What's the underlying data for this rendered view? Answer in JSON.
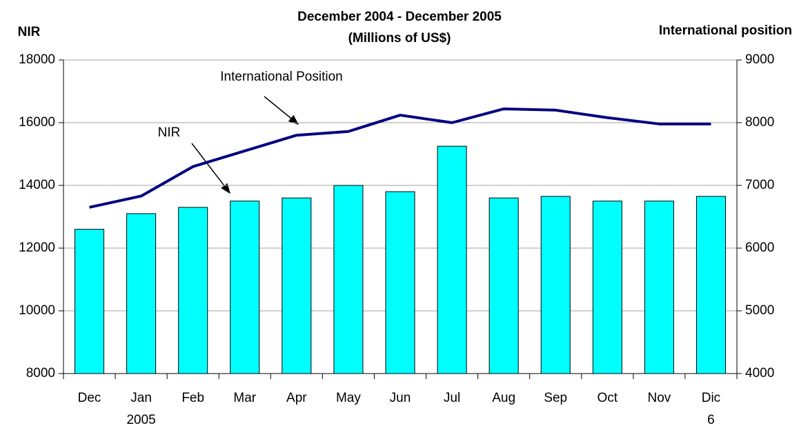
{
  "chart_data": {
    "type": "bar",
    "title": "December 2004 - December 2005",
    "subtitle": "(Millions of US$)",
    "y_label": "NIR",
    "y2_label": "International position",
    "categories": [
      "Dec",
      "Jan",
      "Feb",
      "Mar",
      "Apr",
      "May",
      "Jun",
      "Jul",
      "Aug",
      "Sep",
      "Oct",
      "Nov",
      "Dic"
    ],
    "sublabels": [
      null,
      "2005",
      null,
      null,
      null,
      null,
      null,
      null,
      null,
      null,
      null,
      null,
      "6"
    ],
    "series": [
      {
        "name": "NIR",
        "type": "bar",
        "color": "#00ffff",
        "axis": "y",
        "values": [
          12600,
          13100,
          13300,
          13500,
          13600,
          14000,
          13800,
          15250,
          13600,
          13650,
          13500,
          13500,
          13650
        ]
      },
      {
        "name": "International Position",
        "type": "line",
        "color": "#000080",
        "axis": "y2",
        "values": [
          6650,
          6830,
          7300,
          7550,
          7800,
          7860,
          8120,
          8000,
          8220,
          8200,
          8080,
          7980,
          7980
        ]
      }
    ],
    "ylim": [
      8000,
      18000
    ],
    "yticks": [
      8000,
      10000,
      12000,
      14000,
      16000,
      18000
    ],
    "y2lim": [
      4000,
      9000
    ],
    "y2ticks": [
      4000,
      5000,
      6000,
      7000,
      8000,
      9000
    ],
    "grid": true
  }
}
